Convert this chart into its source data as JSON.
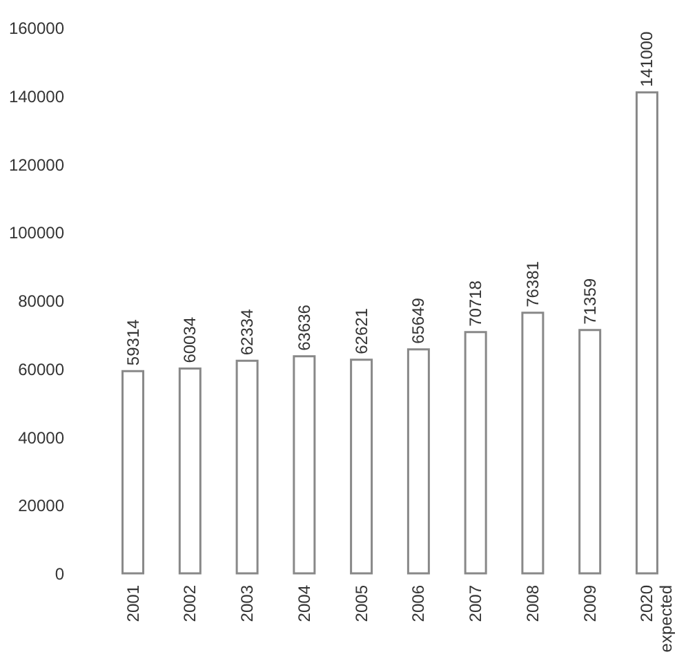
{
  "chart_data": {
    "type": "bar",
    "categories": [
      "2001",
      "2002",
      "2003",
      "2004",
      "2005",
      "2006",
      "2007",
      "2008",
      "2009",
      "2020\nexpected"
    ],
    "values": [
      59314,
      60034,
      62334,
      63636,
      62621,
      65649,
      70718,
      76381,
      71359,
      141000
    ],
    "color": "#ffffff",
    "ylim": [
      0,
      160000
    ],
    "yticks": [
      0,
      20000,
      40000,
      60000,
      80000,
      100000,
      120000,
      140000,
      160000
    ],
    "grid": false,
    "data_labels": true
  }
}
